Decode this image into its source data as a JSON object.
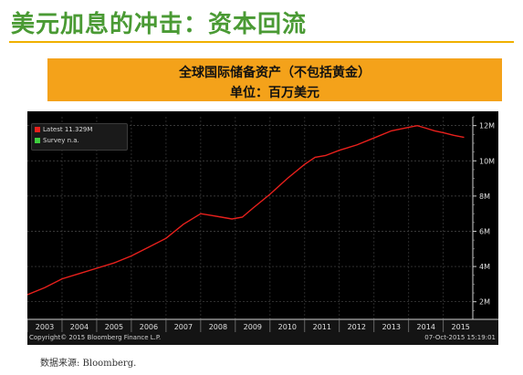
{
  "slide": {
    "title": "美元加息的冲击：资本回流",
    "source": "数据来源: Bloomberg."
  },
  "chart_header": {
    "title": "全球国际储备资产（不包括黄金）",
    "unit": "单位：百万美元"
  },
  "footer": {
    "copyright": "Copyright© 2015 Bloomberg Finance L.P.",
    "timestamp": "07-Oct-2015 15:19:01"
  },
  "colors": {
    "title": "#4a9a34",
    "banner": "#f4a21a",
    "rule": "#f0b000",
    "line": "#e8201c",
    "background": "#000000",
    "survey": "#3fcf3f"
  },
  "chart_data": {
    "type": "line",
    "title": "全球国际储备资产（不包括黄金）",
    "ylabel": "单位：百万美元",
    "xlabel": "",
    "legend": [
      {
        "label": "Latest 11.329M",
        "color": "#e8201c"
      },
      {
        "label": "Survey n.a.",
        "color": "#3fcf3f"
      }
    ],
    "legend_placement": "top-left",
    "grid": true,
    "xlim": [
      2003,
      2015.85
    ],
    "ylim": [
      1.0,
      12.5
    ],
    "x_ticks": [
      "2003",
      "2004",
      "2005",
      "2006",
      "2007",
      "2008",
      "2009",
      "2010",
      "2011",
      "2012",
      "2013",
      "2014",
      "2015"
    ],
    "y_ticks": [
      "2M",
      "4M",
      "6M",
      "8M",
      "10M",
      "12M"
    ],
    "y_tick_values": [
      2,
      4,
      6,
      8,
      10,
      12
    ],
    "series": [
      {
        "name": "Latest",
        "x": [
          2003.0,
          2003.5,
          2004.0,
          2004.5,
          2005.0,
          2005.5,
          2006.0,
          2006.5,
          2007.0,
          2007.5,
          2008.0,
          2008.3,
          2008.6,
          2008.9,
          2009.2,
          2009.5,
          2010.0,
          2010.5,
          2011.0,
          2011.3,
          2011.6,
          2012.0,
          2012.5,
          2013.0,
          2013.5,
          2014.0,
          2014.25,
          2014.5,
          2014.75,
          2015.0,
          2015.3,
          2015.6
        ],
        "values": [
          2.4,
          2.8,
          3.3,
          3.6,
          3.9,
          4.2,
          4.6,
          5.1,
          5.6,
          6.4,
          7.0,
          6.9,
          6.8,
          6.7,
          6.8,
          7.3,
          8.1,
          9.0,
          9.8,
          10.2,
          10.3,
          10.6,
          10.9,
          11.3,
          11.7,
          11.9,
          12.0,
          11.85,
          11.7,
          11.6,
          11.45,
          11.33
        ]
      }
    ]
  }
}
